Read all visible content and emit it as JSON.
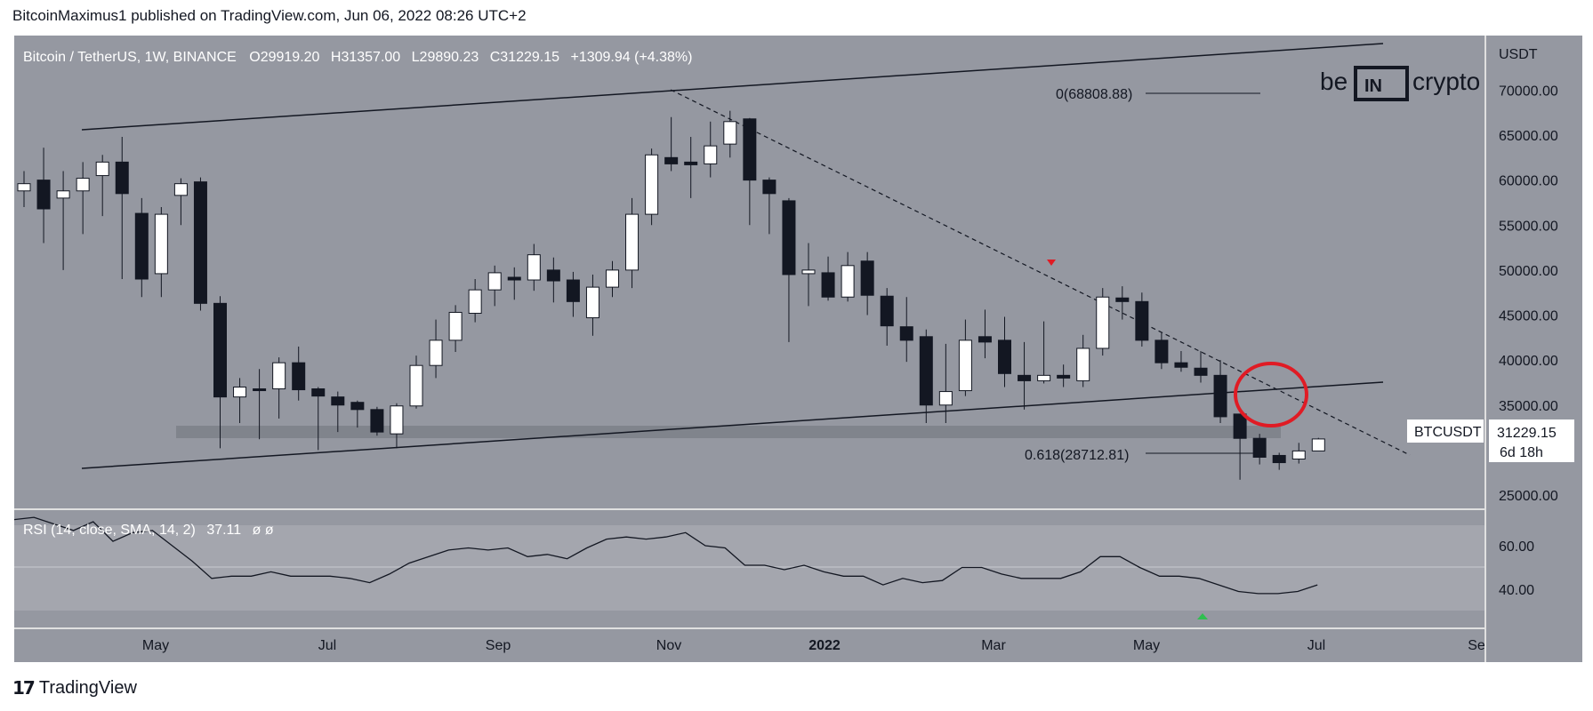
{
  "header": {
    "published_text": "BitcoinMaximus1 published on TradingView.com, Jun 06, 2022 08:26 UTC+2"
  },
  "legend": {
    "symbol": "Bitcoin / TetherUS, 1W, BINANCE",
    "o_label": "O",
    "o_value": "29919.20",
    "h_label": "H",
    "h_value": "31357.00",
    "l_label": "L",
    "l_value": "29890.23",
    "c_label": "C",
    "c_value": "31229.15",
    "change": "+1309.94 (+4.38%)"
  },
  "price_axis": {
    "currency": "USDT",
    "ticks": [
      "70000.00",
      "65000.00",
      "60000.00",
      "55000.00",
      "50000.00",
      "45000.00",
      "40000.00",
      "35000.00",
      "25000.00"
    ]
  },
  "price_badge": {
    "symbol": "BTCUSDT",
    "price": "31229.15",
    "countdown": "6d 18h"
  },
  "fib": {
    "top_label": "0(68808.88)",
    "bottom_label": "0.618(28712.81)"
  },
  "brand": {
    "be": "be",
    "in": "IN",
    "crypto": "crypto"
  },
  "rsi": {
    "label": "RSI (14, close, SMA, 14, 2)",
    "value": "37.11",
    "extra": "ø  ø",
    "ticks": [
      "60.00",
      "40.00"
    ],
    "values": [
      72,
      73,
      70,
      67,
      71,
      62,
      66,
      67,
      60,
      53,
      45,
      46,
      46,
      48,
      46,
      46,
      46,
      45,
      43,
      47,
      52,
      55,
      58,
      59,
      58,
      59,
      55,
      56,
      54,
      59,
      63,
      64,
      63,
      64,
      66,
      60,
      59,
      51,
      51,
      49,
      51,
      48,
      46,
      46,
      42,
      45,
      43,
      44,
      50,
      50,
      47,
      45,
      45,
      45,
      48,
      55,
      55,
      50,
      46,
      46,
      45,
      42,
      39,
      38,
      38,
      39,
      42
    ]
  },
  "time_axis": {
    "labels": [
      "May",
      "Jul",
      "Sep",
      "Nov",
      "2022",
      "Mar",
      "May",
      "Jul",
      "Se"
    ]
  },
  "footer": {
    "brand": "TradingView"
  },
  "colors": {
    "background": "#9598a1",
    "rsi_background": "#a4a6ae",
    "bull": "#ffffff",
    "bear": "#131722",
    "circle": "#e01b24",
    "support_zone": "#7a7d86"
  },
  "chart_data": {
    "type": "candlestick",
    "title": "Bitcoin / TetherUS, 1W, BINANCE",
    "ylabel": "USDT",
    "ylim": [
      24000,
      75000
    ],
    "x_labels": [
      "May",
      "Jul",
      "Sep",
      "Nov",
      "2022",
      "Mar",
      "May",
      "Jul",
      "Se"
    ],
    "candles": [
      [
        58800,
        59600,
        57000,
        61000
      ],
      [
        60000,
        56800,
        53000,
        63600
      ],
      [
        58000,
        58800,
        50000,
        61000
      ],
      [
        58800,
        60200,
        54000,
        62000
      ],
      [
        60500,
        62000,
        56000,
        62800
      ],
      [
        62000,
        58500,
        49000,
        64800
      ],
      [
        56300,
        49000,
        47000,
        58000
      ],
      [
        49600,
        56200,
        47000,
        57000
      ],
      [
        58300,
        59600,
        55000,
        60200
      ],
      [
        59800,
        46300,
        45500,
        60300
      ],
      [
        46300,
        35900,
        30200,
        47100
      ],
      [
        35900,
        37000,
        33000,
        38000
      ],
      [
        36800,
        36700,
        31200,
        39000
      ],
      [
        36800,
        39700,
        33500,
        40300
      ],
      [
        39700,
        36700,
        35500,
        41500
      ],
      [
        36800,
        36000,
        30000,
        37000
      ],
      [
        35900,
        35000,
        32000,
        36500
      ],
      [
        35300,
        34500,
        32500,
        35500
      ],
      [
        34500,
        32000,
        31600,
        34800
      ],
      [
        31800,
        34900,
        30200,
        35200
      ],
      [
        34900,
        39400,
        34600,
        40500
      ],
      [
        39400,
        42200,
        38000,
        44500
      ],
      [
        42200,
        45300,
        40900,
        46100
      ],
      [
        45200,
        47800,
        44200,
        49000
      ],
      [
        47800,
        49700,
        46000,
        50500
      ],
      [
        49200,
        48900,
        46700,
        50300
      ],
      [
        48900,
        51700,
        47700,
        52900
      ],
      [
        50000,
        48800,
        46400,
        51400
      ],
      [
        48900,
        46500,
        44800,
        49800
      ],
      [
        44700,
        48100,
        42700,
        49500
      ],
      [
        48100,
        50000,
        47000,
        51000
      ],
      [
        50000,
        56200,
        48000,
        58000
      ],
      [
        56200,
        62800,
        55000,
        63500
      ],
      [
        62500,
        61800,
        61000,
        67000
      ],
      [
        62000,
        61700,
        58000,
        64800
      ],
      [
        61800,
        63800,
        60300,
        66500
      ],
      [
        64000,
        66500,
        62500,
        67700
      ],
      [
        66800,
        60000,
        55000,
        66900
      ],
      [
        60000,
        58500,
        54000,
        60300
      ],
      [
        57700,
        49500,
        42000,
        58000
      ],
      [
        49600,
        50000,
        46000,
        53000
      ],
      [
        49700,
        47000,
        46600,
        51500
      ],
      [
        47000,
        50500,
        46500,
        52000
      ],
      [
        51000,
        47200,
        45000,
        52000
      ],
      [
        47100,
        43800,
        41600,
        48000
      ],
      [
        43700,
        42200,
        39800,
        47000
      ],
      [
        42600,
        35000,
        33000,
        43400
      ],
      [
        35000,
        36500,
        33000,
        41800
      ],
      [
        36600,
        42200,
        36000,
        44500
      ],
      [
        42600,
        42000,
        40200,
        45600
      ],
      [
        42200,
        38500,
        37000,
        44800
      ],
      [
        38300,
        37700,
        34500,
        42000
      ],
      [
        37700,
        38300,
        37400,
        44300
      ],
      [
        38300,
        38000,
        37000,
        39500
      ],
      [
        37700,
        41300,
        37000,
        42800
      ],
      [
        41300,
        47000,
        40500,
        48000
      ],
      [
        46900,
        46500,
        44500,
        48200
      ],
      [
        46500,
        42200,
        41500,
        47500
      ],
      [
        42200,
        39700,
        39000,
        43000
      ],
      [
        39700,
        39200,
        38700,
        41000
      ],
      [
        39100,
        38300,
        37500,
        41000
      ],
      [
        38300,
        33700,
        33000,
        40000
      ],
      [
        34000,
        31300,
        26700,
        34000
      ],
      [
        31300,
        29200,
        28400,
        31800
      ],
      [
        29400,
        28600,
        27800,
        29700
      ],
      [
        29000,
        29900,
        28500,
        30800
      ],
      [
        29900,
        31229,
        29890,
        31357
      ]
    ]
  }
}
